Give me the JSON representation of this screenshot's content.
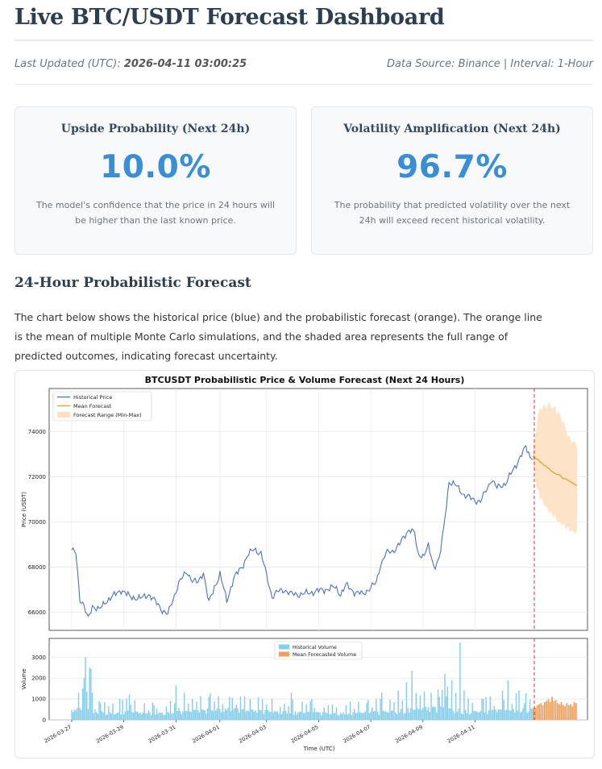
{
  "header": {
    "title": "Live BTC/USDT Forecast Dashboard",
    "updated_label": "Last Updated (UTC):",
    "updated_value": "2026-04-11 03:00:25",
    "source": "Data Source: Binance | Interval: 1-Hour"
  },
  "cards": [
    {
      "title": "Upside Probability (Next 24h)",
      "value": "10.0%",
      "desc": "The model's confidence that the price in 24 hours will be higher than the last known price."
    },
    {
      "title": "Volatility Amplification (Next 24h)",
      "value": "96.7%",
      "desc": "The probability that predicted volatility over the next 24h will exceed recent historical volatility."
    }
  ],
  "section": {
    "title": "24-Hour Probabilistic Forecast",
    "text": "The chart below shows the historical price (blue) and the probabilistic forecast (orange). The orange line is the mean of multiple Monte Carlo simulations, and the shaded area represents the full range of predicted outcomes, indicating forecast uncertainty."
  },
  "colors": {
    "history": "#4a72c8",
    "forecast": "#e6a02a",
    "band": "#fde0c2",
    "volume": "#87ceeb",
    "fvolume": "#f0a060",
    "marker": "#e03030",
    "accent": "#3a8ed6"
  },
  "chart_data": [
    {
      "type": "line",
      "title": "BTCUSDT Probabilistic Price & Volume Forecast (Next 24 Hours)",
      "ylabel": "Price (USDT)",
      "xlabel": "",
      "ylim": [
        65200,
        75900
      ],
      "yticks": [
        66000,
        68000,
        70000,
        72000,
        74000
      ],
      "grid": true,
      "legend": {
        "position": "top-left",
        "entries": [
          "Historical Price",
          "Mean Forecast",
          "Forecast Range (Min-Max)"
        ]
      },
      "history_anchors": [
        [
          0,
          68700
        ],
        [
          3,
          68650
        ],
        [
          6,
          66600
        ],
        [
          8,
          66400
        ],
        [
          12,
          65700
        ],
        [
          15,
          66300
        ],
        [
          20,
          66100
        ],
        [
          25,
          66500
        ],
        [
          30,
          66700
        ],
        [
          36,
          67000
        ],
        [
          42,
          66700
        ],
        [
          50,
          66600
        ],
        [
          56,
          66800
        ],
        [
          62,
          66400
        ],
        [
          66,
          66100
        ],
        [
          70,
          65900
        ],
        [
          74,
          66600
        ],
        [
          78,
          67300
        ],
        [
          84,
          67800
        ],
        [
          88,
          67400
        ],
        [
          92,
          67300
        ],
        [
          96,
          67800
        ],
        [
          100,
          66400
        ],
        [
          104,
          67100
        ],
        [
          108,
          67700
        ],
        [
          113,
          66500
        ],
        [
          118,
          67500
        ],
        [
          124,
          68000
        ],
        [
          128,
          68500
        ],
        [
          133,
          68800
        ],
        [
          138,
          68600
        ],
        [
          143,
          67400
        ],
        [
          146,
          66700
        ],
        [
          150,
          66900
        ],
        [
          155,
          67000
        ],
        [
          160,
          66800
        ],
        [
          168,
          66800
        ],
        [
          176,
          66900
        ],
        [
          184,
          67000
        ],
        [
          192,
          67100
        ],
        [
          196,
          66800
        ],
        [
          200,
          67200
        ],
        [
          206,
          66900
        ],
        [
          212,
          66800
        ],
        [
          218,
          67100
        ],
        [
          222,
          67300
        ],
        [
          225,
          68100
        ],
        [
          229,
          68600
        ],
        [
          234,
          68700
        ],
        [
          240,
          69100
        ],
        [
          246,
          69700
        ],
        [
          250,
          69500
        ],
        [
          252,
          68600
        ],
        [
          256,
          68500
        ],
        [
          260,
          68900
        ],
        [
          264,
          68000
        ],
        [
          268,
          68400
        ],
        [
          271,
          69600
        ],
        [
          275,
          71800
        ],
        [
          280,
          71600
        ],
        [
          286,
          71200
        ],
        [
          292,
          71000
        ],
        [
          298,
          70900
        ],
        [
          303,
          71500
        ],
        [
          306,
          71900
        ],
        [
          310,
          71500
        ],
        [
          316,
          71700
        ],
        [
          322,
          72300
        ],
        [
          327,
          72900
        ],
        [
          331,
          73300
        ],
        [
          334,
          72900
        ],
        [
          336,
          72900
        ]
      ],
      "forecast_mean": [
        72900,
        72850,
        72780,
        72760,
        72650,
        72600,
        72500,
        72480,
        72400,
        72350,
        72250,
        72200,
        72150,
        72100,
        72100,
        72050,
        71950,
        71900,
        71900,
        71850,
        71800,
        71750,
        71700,
        71650,
        71600
      ],
      "forecast_max": [
        72950,
        73600,
        74200,
        74700,
        75000,
        75100,
        75050,
        75100,
        75150,
        75200,
        75150,
        75000,
        75050,
        74900,
        74800,
        74700,
        74500,
        74300,
        74100,
        73800,
        73700,
        73600,
        73500,
        73450,
        73400
      ],
      "forecast_min": [
        72850,
        72100,
        71600,
        71300,
        71100,
        70950,
        70800,
        70700,
        70550,
        70450,
        70400,
        70300,
        70200,
        70100,
        70000,
        69950,
        69900,
        69850,
        69750,
        69700,
        69650,
        69600,
        69550,
        69550,
        69500
      ]
    },
    {
      "type": "bar",
      "ylabel": "Volume",
      "xlabel": "Time (UTC)",
      "ylim": [
        0,
        3900
      ],
      "yticks": [
        0,
        1000,
        2000,
        3000
      ],
      "xticks": [
        "2026-03-27",
        "2026-03-29",
        "2026-03-31",
        "2026-04-01",
        "2026-04-03",
        "2026-04-05",
        "2026-04-07",
        "2026-04-09",
        "2026-04-11"
      ],
      "legend": {
        "position": "top-center",
        "entries": [
          "Historical Volume",
          "Mean Forecasted Volume"
        ]
      },
      "history_profile": [
        [
          0,
          500
        ],
        [
          10,
          650
        ],
        [
          20,
          450
        ],
        [
          30,
          350
        ],
        [
          40,
          450
        ],
        [
          55,
          350
        ],
        [
          70,
          400
        ],
        [
          85,
          450
        ],
        [
          100,
          550
        ],
        [
          115,
          600
        ],
        [
          130,
          500
        ],
        [
          150,
          450
        ],
        [
          170,
          400
        ],
        [
          190,
          350
        ],
        [
          210,
          400
        ],
        [
          230,
          450
        ],
        [
          250,
          600
        ],
        [
          270,
          650
        ],
        [
          290,
          450
        ],
        [
          310,
          500
        ],
        [
          336,
          600
        ]
      ],
      "history_spikes": [
        [
          8,
          1500
        ],
        [
          9,
          2000
        ],
        [
          10,
          3000
        ],
        [
          13,
          2500
        ],
        [
          14,
          2450
        ],
        [
          15,
          1300
        ],
        [
          20,
          900
        ],
        [
          35,
          1000
        ],
        [
          42,
          1200
        ],
        [
          60,
          700
        ],
        [
          76,
          1650
        ],
        [
          82,
          1300
        ],
        [
          88,
          1000
        ],
        [
          100,
          1100
        ],
        [
          115,
          1100
        ],
        [
          130,
          1000
        ],
        [
          146,
          1000
        ],
        [
          160,
          1300
        ],
        [
          175,
          1000
        ],
        [
          200,
          700
        ],
        [
          215,
          800
        ],
        [
          226,
          1300
        ],
        [
          238,
          1400
        ],
        [
          244,
          1800
        ],
        [
          248,
          2350
        ],
        [
          262,
          1300
        ],
        [
          268,
          1100
        ],
        [
          272,
          2200
        ],
        [
          274,
          1600
        ],
        [
          277,
          1900
        ],
        [
          280,
          1300
        ],
        [
          283,
          3700
        ],
        [
          286,
          1400
        ],
        [
          300,
          1000
        ],
        [
          314,
          1400
        ],
        [
          318,
          1900
        ],
        [
          326,
          1400
        ],
        [
          330,
          800
        ]
      ],
      "forecast_values": [
        550,
        600,
        700,
        750,
        800,
        700,
        850,
        900,
        1000,
        850,
        1100,
        900,
        950,
        800,
        750,
        850,
        700,
        650,
        800,
        700,
        750,
        650,
        850,
        800
      ]
    }
  ]
}
